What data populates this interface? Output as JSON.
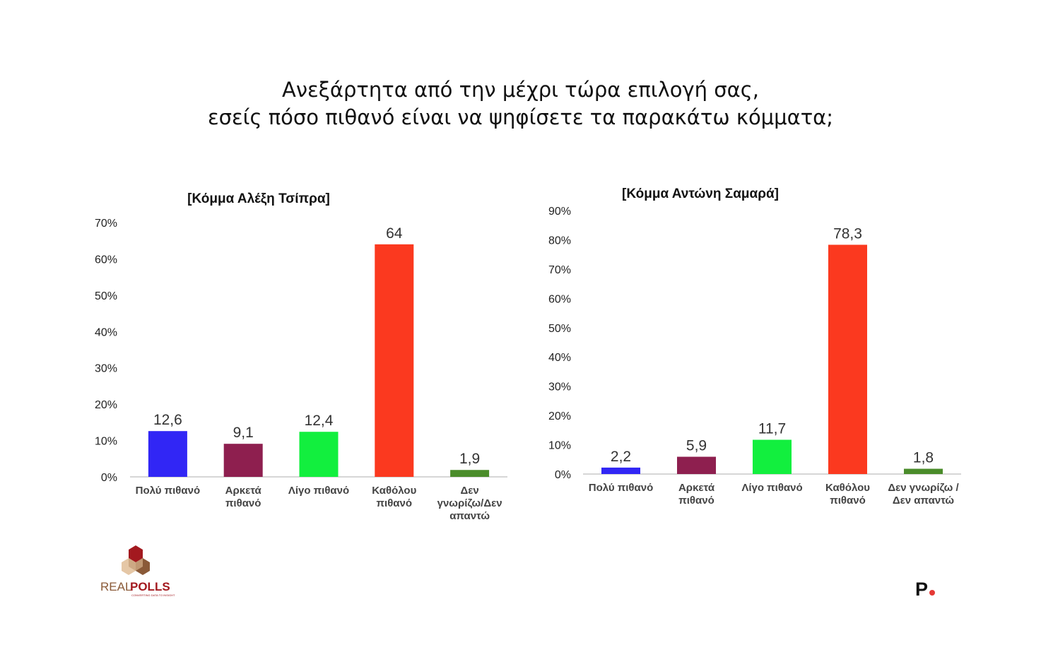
{
  "title": {
    "line1": "Ανεξάρτητα από την μέχρι τώρα επιλογή σας,",
    "line2": "εσείς πόσο πιθανό είναι να ψηφίσετε τα παρακάτω κόμματα;"
  },
  "chart_data": [
    {
      "type": "bar",
      "title": "[Κόμμα Αλέξη Τσίπρα]",
      "categories": [
        "Πολύ πιθανό",
        "Αρκετά πιθανό",
        "Λίγο πιθανό",
        "Καθόλου πιθανό",
        "Δεν γνωρίζω/Δεν απαντώ"
      ],
      "category_lines": [
        [
          "Πολύ πιθανό"
        ],
        [
          "Αρκετά",
          "πιθανό"
        ],
        [
          "Λίγο πιθανό"
        ],
        [
          "Καθόλου",
          "πιθανό"
        ],
        [
          "Δεν",
          "γνωρίζω/Δεν",
          "απαντώ"
        ]
      ],
      "values": [
        12.6,
        9.1,
        12.4,
        64,
        1.9
      ],
      "value_labels": [
        "12,6",
        "9,1",
        "12,4",
        "64",
        "1,9"
      ],
      "colors": [
        "#3126f5",
        "#8e1f4f",
        "#12ef3e",
        "#fb391f",
        "#4a8c2a"
      ],
      "ylim": [
        0,
        70
      ],
      "yticks": [
        "0%",
        "10%",
        "20%",
        "30%",
        "40%",
        "50%",
        "60%",
        "70%"
      ],
      "xlabel": "",
      "ylabel": "",
      "grid": false,
      "legend": "none"
    },
    {
      "type": "bar",
      "title": "[Κόμμα Αντώνη Σαμαρά]",
      "categories": [
        "Πολύ πιθανό",
        "Αρκετά πιθανό",
        "Λίγο πιθανό",
        "Καθόλου πιθανό",
        "Δεν γνωρίζω / Δεν απαντώ"
      ],
      "category_lines": [
        [
          "Πολύ πιθανό"
        ],
        [
          "Αρκετά",
          "πιθανό"
        ],
        [
          "Λίγο πιθανό"
        ],
        [
          "Καθόλου",
          "πιθανό"
        ],
        [
          "Δεν γνωρίζω /",
          "Δεν απαντώ"
        ]
      ],
      "values": [
        2.2,
        5.9,
        11.7,
        78.3,
        1.8
      ],
      "value_labels": [
        "2,2",
        "5,9",
        "11,7",
        "78,3",
        "1,8"
      ],
      "colors": [
        "#3126f5",
        "#8e1f4f",
        "#12ef3e",
        "#fb391f",
        "#4a8c2a"
      ],
      "ylim": [
        0,
        90
      ],
      "yticks": [
        "0%",
        "10%",
        "20%",
        "30%",
        "40%",
        "50%",
        "60%",
        "70%",
        "80%",
        "90%"
      ],
      "xlabel": "",
      "ylabel": "",
      "grid": false,
      "legend": "none"
    }
  ],
  "logos": {
    "realpolls_text_a": "REAL",
    "realpolls_text_b": "POLLS",
    "realpolls_tagline": "CONVERTING DATA TO INSIGHT",
    "p_mark": "P"
  },
  "colors": {
    "realpolls_red": "#a3191f",
    "realpolls_brown": "#8a5a38",
    "p_dot": "#e53935"
  }
}
